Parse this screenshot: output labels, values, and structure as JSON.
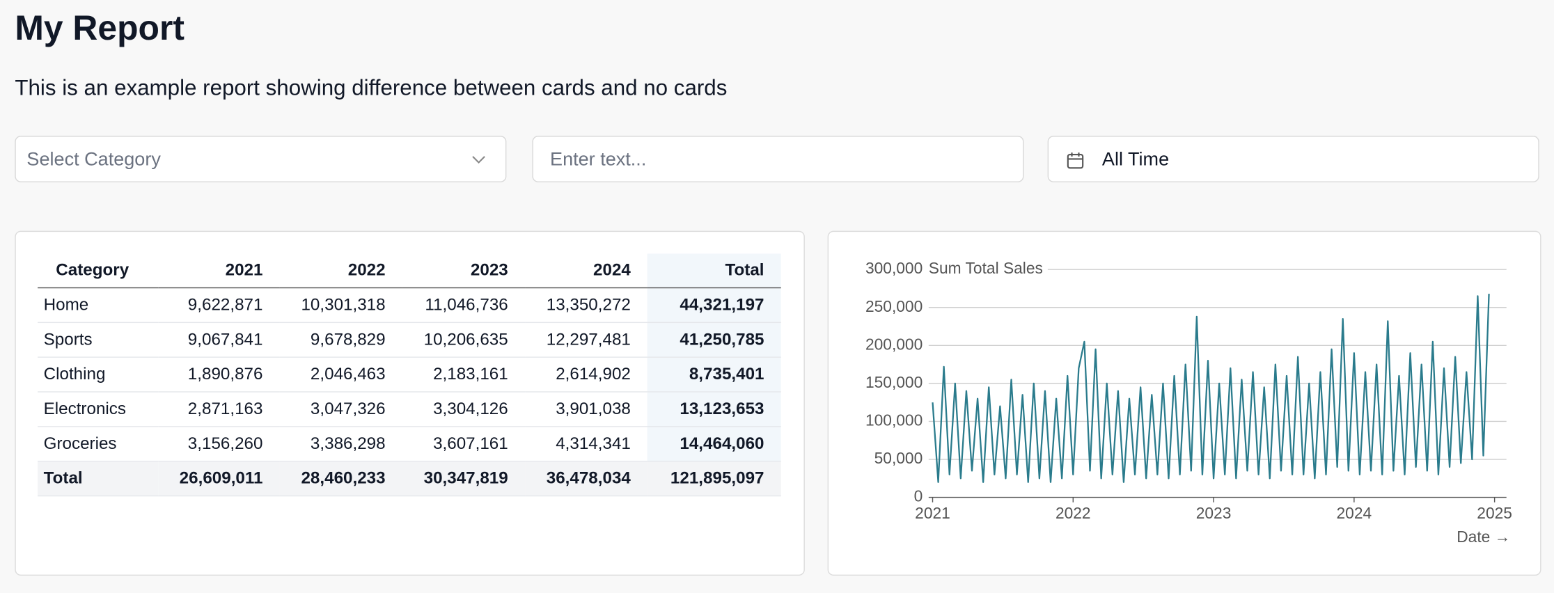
{
  "header": {
    "title": "My Report",
    "subtitle": "This is an example report showing difference between cards and no cards"
  },
  "filters": {
    "category_placeholder": "Select Category",
    "text_placeholder": "Enter text...",
    "date_range": "All Time"
  },
  "table": {
    "columns": [
      "Category",
      "2021",
      "2022",
      "2023",
      "2024",
      "Total"
    ],
    "rows": [
      [
        "Home",
        "9,622,871",
        "10,301,318",
        "11,046,736",
        "13,350,272",
        "44,321,197"
      ],
      [
        "Sports",
        "9,067,841",
        "9,678,829",
        "10,206,635",
        "12,297,481",
        "41,250,785"
      ],
      [
        "Clothing",
        "1,890,876",
        "2,046,463",
        "2,183,161",
        "2,614,902",
        "8,735,401"
      ],
      [
        "Electronics",
        "2,871,163",
        "3,047,326",
        "3,304,126",
        "3,901,038",
        "13,123,653"
      ],
      [
        "Groceries",
        "3,156,260",
        "3,386,298",
        "3,607,161",
        "4,314,341",
        "14,464,060"
      ]
    ],
    "total": [
      "Total",
      "26,609,011",
      "28,460,233",
      "30,347,819",
      "36,478,034",
      "121,895,097"
    ]
  },
  "chart_data": {
    "type": "line",
    "title": "Sum Total Sales",
    "x_label": "Date →",
    "color": "#2a7b8c",
    "grid": true,
    "x": [
      2021.0,
      2021.04,
      2021.08,
      2021.12,
      2021.16,
      2021.2,
      2021.24,
      2021.28,
      2021.32,
      2021.36,
      2021.4,
      2021.44,
      2021.48,
      2021.52,
      2021.56,
      2021.6,
      2021.64,
      2021.68,
      2021.72,
      2021.76,
      2021.8,
      2021.84,
      2021.88,
      2021.92,
      2021.96,
      2022.0,
      2022.04,
      2022.08,
      2022.12,
      2022.16,
      2022.2,
      2022.24,
      2022.28,
      2022.32,
      2022.36,
      2022.4,
      2022.44,
      2022.48,
      2022.52,
      2022.56,
      2022.6,
      2022.64,
      2022.68,
      2022.72,
      2022.76,
      2022.8,
      2022.84,
      2022.88,
      2022.92,
      2022.96,
      2023.0,
      2023.04,
      2023.08,
      2023.12,
      2023.16,
      2023.2,
      2023.24,
      2023.28,
      2023.32,
      2023.36,
      2023.4,
      2023.44,
      2023.48,
      2023.52,
      2023.56,
      2023.6,
      2023.64,
      2023.68,
      2023.72,
      2023.76,
      2023.8,
      2023.84,
      2023.88,
      2023.92,
      2023.96,
      2024.0,
      2024.04,
      2024.08,
      2024.12,
      2024.16,
      2024.2,
      2024.24,
      2024.28,
      2024.32,
      2024.36,
      2024.4,
      2024.44,
      2024.48,
      2024.52,
      2024.56,
      2024.6,
      2024.64,
      2024.68,
      2024.72,
      2024.76,
      2024.8,
      2024.84,
      2024.88,
      2024.92,
      2024.96
    ],
    "values": [
      125000,
      20000,
      172000,
      30000,
      150000,
      25000,
      140000,
      35000,
      130000,
      20000,
      145000,
      30000,
      120000,
      25000,
      155000,
      30000,
      135000,
      20000,
      150000,
      25000,
      140000,
      20000,
      130000,
      25000,
      160000,
      30000,
      170000,
      205000,
      35000,
      195000,
      25000,
      150000,
      30000,
      140000,
      20000,
      130000,
      30000,
      145000,
      25000,
      135000,
      30000,
      150000,
      25000,
      160000,
      30000,
      175000,
      35000,
      238000,
      30000,
      180000,
      25000,
      150000,
      30000,
      170000,
      25000,
      155000,
      35000,
      165000,
      30000,
      145000,
      25000,
      175000,
      35000,
      160000,
      30000,
      185000,
      30000,
      150000,
      25000,
      165000,
      30000,
      195000,
      40000,
      235000,
      35000,
      190000,
      30000,
      165000,
      35000,
      175000,
      30000,
      232000,
      35000,
      160000,
      30000,
      190000,
      40000,
      175000,
      35000,
      205000,
      30000,
      170000,
      40000,
      185000,
      45000,
      165000,
      50000,
      265000,
      55000,
      268000
    ],
    "xlim": [
      2021,
      2025
    ],
    "xticks": [
      2021,
      2022,
      2023,
      2024,
      2025
    ],
    "ylim": [
      0,
      300000
    ],
    "yticks": [
      0,
      {
        "value": 50000,
        "label": "50,000"
      },
      {
        "value": 100000,
        "label": "100,000"
      },
      {
        "value": 150000,
        "label": "150,000"
      },
      {
        "value": 200000,
        "label": "200,000"
      },
      {
        "value": 250000,
        "label": "250,000"
      },
      {
        "value": 300000,
        "label": "300,000"
      }
    ]
  }
}
